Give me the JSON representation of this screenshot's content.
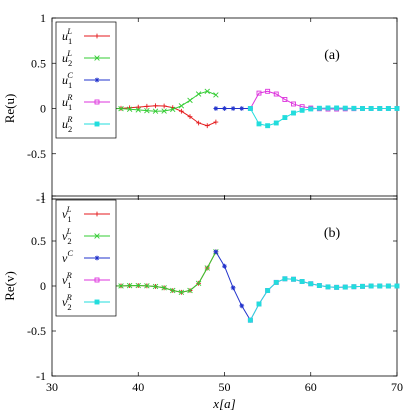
{
  "chart_data": [
    {
      "type": "line",
      "panel_label": "(a)",
      "ylabel": "Re(u)",
      "xlabel": "",
      "xlim": [
        30,
        70
      ],
      "ylim": [
        -1,
        1
      ],
      "yticks": [
        "1",
        "0.5",
        "0",
        "-0.5",
        "-1"
      ],
      "xticks": [],
      "grid": false,
      "legend_position": "top-left",
      "series": [
        {
          "name": "u_1^L",
          "base": "u",
          "sub": "1",
          "sup": "L",
          "color": "#e41a1c",
          "marker": "plus",
          "points": [
            [
              37,
              0
            ],
            [
              38,
              0.002
            ],
            [
              39,
              0.008
            ],
            [
              40,
              0.015
            ],
            [
              41,
              0.024
            ],
            [
              42,
              0.03
            ],
            [
              43,
              0.028
            ],
            [
              44,
              0.01
            ],
            [
              45,
              -0.03
            ],
            [
              46,
              -0.09
            ],
            [
              47,
              -0.16
            ],
            [
              48,
              -0.19
            ],
            [
              49,
              -0.15
            ]
          ]
        },
        {
          "name": "u_2^L",
          "base": "u",
          "sub": "2",
          "sup": "L",
          "color": "#33cc33",
          "marker": "x",
          "points": [
            [
              37,
              0
            ],
            [
              38,
              -0.002
            ],
            [
              39,
              -0.008
            ],
            [
              40,
              -0.015
            ],
            [
              41,
              -0.024
            ],
            [
              42,
              -0.03
            ],
            [
              43,
              -0.028
            ],
            [
              44,
              -0.01
            ],
            [
              45,
              0.03
            ],
            [
              46,
              0.09
            ],
            [
              47,
              0.16
            ],
            [
              48,
              0.19
            ],
            [
              49,
              0.15
            ]
          ]
        },
        {
          "name": "u^C_1",
          "base": "u",
          "sub": "1",
          "sup": "C",
          "color": "#2233cc",
          "marker": "star",
          "points": [
            [
              49,
              0
            ],
            [
              50,
              0
            ],
            [
              51,
              0
            ],
            [
              52,
              0
            ],
            [
              53,
              0
            ]
          ]
        },
        {
          "name": "u_1^R",
          "base": "u",
          "sub": "1",
          "sup": "R",
          "color": "#dd33dd",
          "marker": "square",
          "points": [
            [
              53,
              0
            ],
            [
              54,
              0.17
            ],
            [
              55,
              0.19
            ],
            [
              56,
              0.16
            ],
            [
              57,
              0.1
            ],
            [
              58,
              0.05
            ],
            [
              59,
              0.02
            ],
            [
              60,
              0.005
            ],
            [
              61,
              -0.003
            ],
            [
              62,
              -0.006
            ],
            [
              63,
              -0.006
            ],
            [
              64,
              -0.004
            ],
            [
              65,
              -0.002
            ],
            [
              66,
              0
            ],
            [
              67,
              0
            ],
            [
              68,
              0
            ],
            [
              69,
              0
            ],
            [
              70,
              0
            ]
          ]
        },
        {
          "name": "u_2^R",
          "base": "u",
          "sub": "2",
          "sup": "R",
          "color": "#22dddd",
          "marker": "filled-square",
          "points": [
            [
              53,
              0
            ],
            [
              54,
              -0.17
            ],
            [
              55,
              -0.19
            ],
            [
              56,
              -0.16
            ],
            [
              57,
              -0.1
            ],
            [
              58,
              -0.05
            ],
            [
              59,
              -0.02
            ],
            [
              60,
              -0.005
            ],
            [
              61,
              0.003
            ],
            [
              62,
              0.006
            ],
            [
              63,
              0.006
            ],
            [
              64,
              0.004
            ],
            [
              65,
              0.002
            ],
            [
              66,
              0
            ],
            [
              67,
              0
            ],
            [
              68,
              0
            ],
            [
              69,
              0
            ],
            [
              70,
              0
            ]
          ]
        }
      ]
    },
    {
      "type": "line",
      "panel_label": "(b)",
      "ylabel": "Re(v)",
      "xlabel": "x[a]",
      "xlim": [
        30,
        70
      ],
      "ylim": [
        -1,
        1
      ],
      "yticks": [
        "1",
        "0.5",
        "0",
        "-0.5",
        "-1"
      ],
      "xticks": [
        "30",
        "40",
        "50",
        "60",
        "70"
      ],
      "grid": false,
      "legend_position": "top-left",
      "series": [
        {
          "name": "v_1^L",
          "base": "v",
          "sub": "1",
          "sup": "L",
          "color": "#e41a1c",
          "marker": "plus",
          "points": [
            [
              37,
              0
            ],
            [
              38,
              0.001
            ],
            [
              39,
              0.004
            ],
            [
              40,
              0.005
            ],
            [
              41,
              0.002
            ],
            [
              42,
              -0.005
            ],
            [
              43,
              -0.02
            ],
            [
              44,
              -0.05
            ],
            [
              45,
              -0.07
            ],
            [
              46,
              -0.05
            ],
            [
              47,
              0.03
            ],
            [
              48,
              0.2
            ],
            [
              49,
              0.38
            ]
          ]
        },
        {
          "name": "v_2^L",
          "base": "v",
          "sub": "2",
          "sup": "L",
          "color": "#33cc33",
          "marker": "x",
          "points": [
            [
              37,
              0
            ],
            [
              38,
              0.001
            ],
            [
              39,
              0.004
            ],
            [
              40,
              0.005
            ],
            [
              41,
              0.002
            ],
            [
              42,
              -0.005
            ],
            [
              43,
              -0.02
            ],
            [
              44,
              -0.05
            ],
            [
              45,
              -0.07
            ],
            [
              46,
              -0.05
            ],
            [
              47,
              0.03
            ],
            [
              48,
              0.2
            ],
            [
              49,
              0.38
            ]
          ]
        },
        {
          "name": "v^C",
          "base": "v",
          "sub": "",
          "sup": "C",
          "color": "#2233cc",
          "marker": "star",
          "points": [
            [
              49,
              0.38
            ],
            [
              50,
              0.22
            ],
            [
              51,
              -0.02
            ],
            [
              52,
              -0.22
            ],
            [
              53,
              -0.38
            ]
          ]
        },
        {
          "name": "v_1^R",
          "base": "v",
          "sub": "1",
          "sup": "R",
          "color": "#dd33dd",
          "marker": "square",
          "points": [
            [
              53,
              -0.38
            ],
            [
              54,
              -0.2
            ],
            [
              55,
              -0.05
            ],
            [
              56,
              0.04
            ],
            [
              57,
              0.08
            ],
            [
              58,
              0.075
            ],
            [
              59,
              0.05
            ],
            [
              60,
              0.025
            ],
            [
              61,
              0.005
            ],
            [
              62,
              -0.01
            ],
            [
              63,
              -0.015
            ],
            [
              64,
              -0.012
            ],
            [
              65,
              -0.008
            ],
            [
              66,
              -0.004
            ],
            [
              67,
              0
            ],
            [
              68,
              0
            ],
            [
              69,
              0
            ],
            [
              70,
              0
            ]
          ]
        },
        {
          "name": "v_2^R",
          "base": "v",
          "sub": "2",
          "sup": "R",
          "color": "#22dddd",
          "marker": "filled-square",
          "points": [
            [
              53,
              -0.38
            ],
            [
              54,
              -0.2
            ],
            [
              55,
              -0.05
            ],
            [
              56,
              0.04
            ],
            [
              57,
              0.08
            ],
            [
              58,
              0.075
            ],
            [
              59,
              0.05
            ],
            [
              60,
              0.025
            ],
            [
              61,
              0.005
            ],
            [
              62,
              -0.01
            ],
            [
              63,
              -0.015
            ],
            [
              64,
              -0.012
            ],
            [
              65,
              -0.008
            ],
            [
              66,
              -0.004
            ],
            [
              67,
              0
            ],
            [
              68,
              0
            ],
            [
              69,
              0
            ],
            [
              70,
              0
            ]
          ]
        }
      ]
    }
  ]
}
